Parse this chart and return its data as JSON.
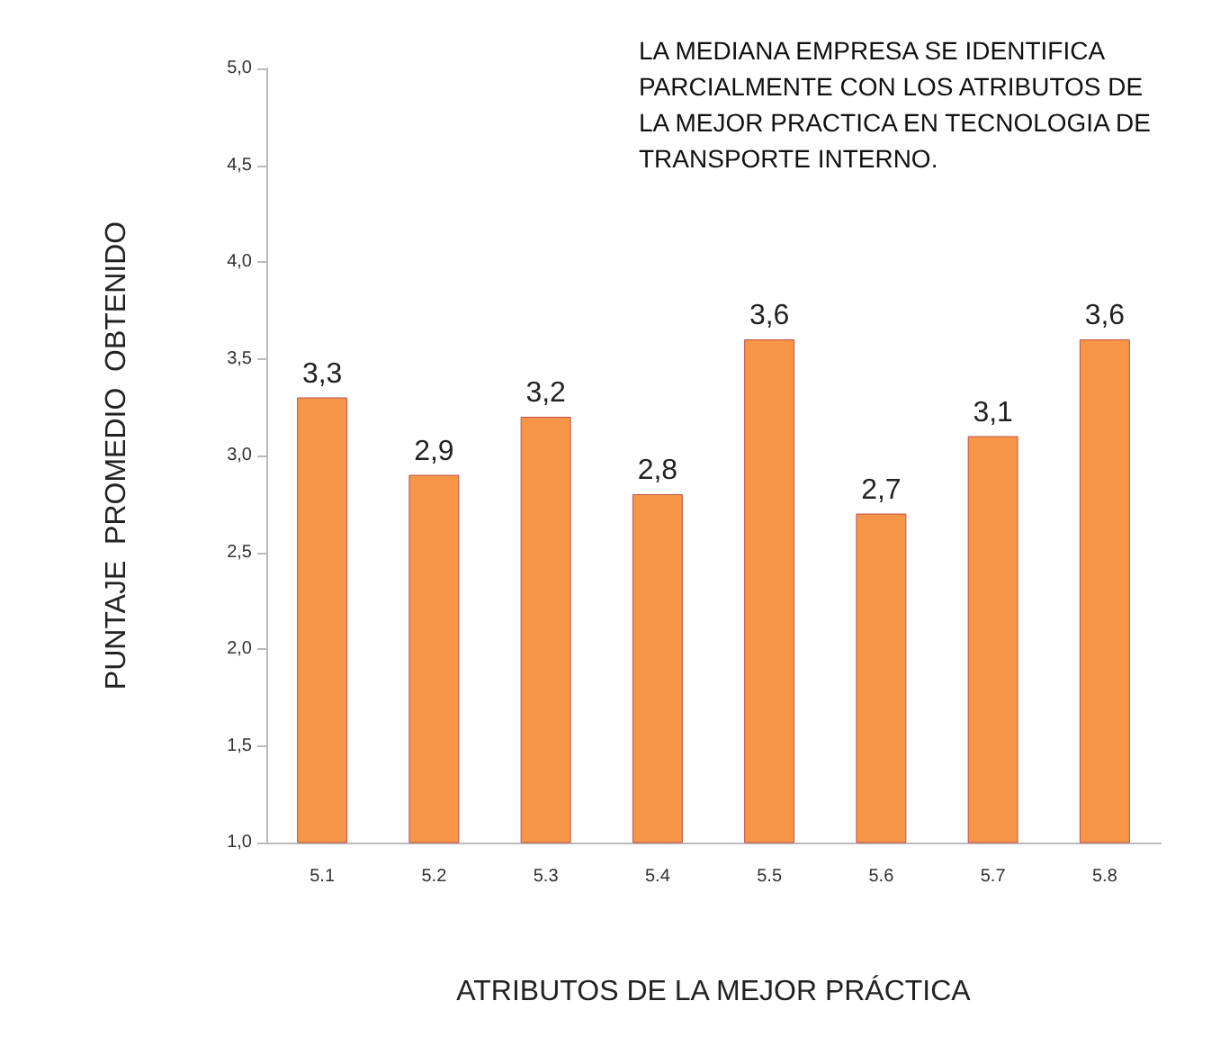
{
  "chart_data": {
    "type": "bar",
    "xlabel": "ATRIBUTOS DE LA MEJOR PRÁCTICA",
    "ylabel": "PUNTAJE  PROMEDIO  OBTENIDO",
    "categories": [
      "5.1",
      "5.2",
      "5.3",
      "5.4",
      "5.5",
      "5.6",
      "5.7",
      "5.8"
    ],
    "values": [
      3.3,
      2.9,
      3.2,
      2.8,
      3.6,
      2.7,
      3.1,
      3.6
    ],
    "value_labels": [
      "3,3",
      "2,9",
      "3,2",
      "2,8",
      "3,6",
      "2,7",
      "3,1",
      "3,6"
    ],
    "color": "#f79646",
    "ylim": [
      1,
      5
    ],
    "yticks": [
      {
        "value": 1,
        "label": "1,0"
      },
      {
        "value": 1.5,
        "label": "1,5"
      },
      {
        "value": 2,
        "label": "2,0"
      },
      {
        "value": 2.5,
        "label": "2,5"
      },
      {
        "value": 3,
        "label": "3,0"
      },
      {
        "value": 3.5,
        "label": "3,5"
      },
      {
        "value": 4,
        "label": "4,0"
      },
      {
        "value": 4.5,
        "label": "4,5"
      },
      {
        "value": 5,
        "label": "5,0"
      }
    ],
    "grid": false,
    "annotations": [
      "LA MEDIANA EMPRESA SE IDENTIFICA PARCIALMENTE CON LOS ATRIBUTOS DE LA MEJOR PRACTICA EN TECNOLOGIA DE TRANSPORTE INTERNO."
    ]
  }
}
